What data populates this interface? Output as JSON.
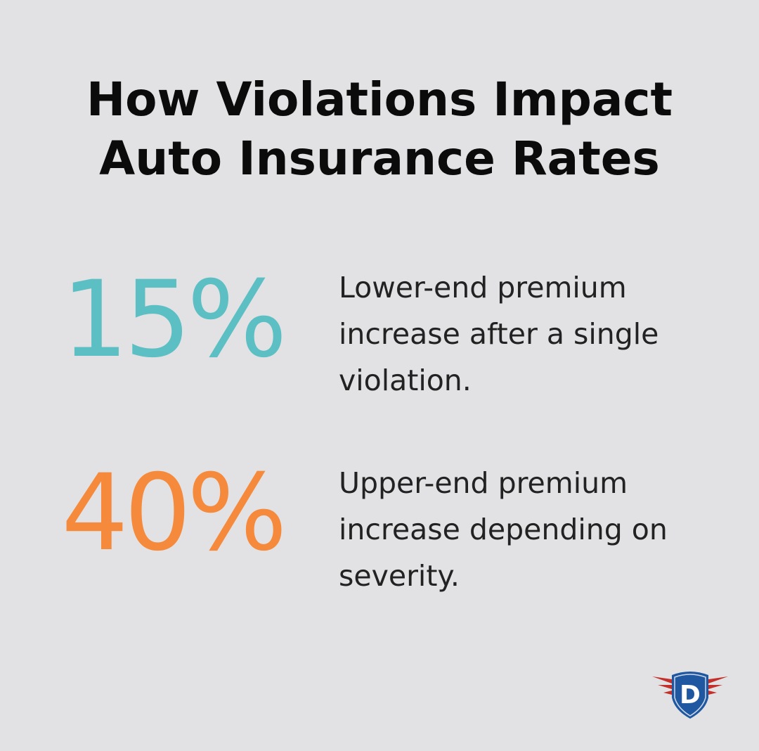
{
  "title": {
    "line1": "How Violations Impact",
    "line2": "Auto Insurance Rates"
  },
  "stats": [
    {
      "value": "15%",
      "color": "#5bbfc3",
      "description": "Lower-end premium increase after a single violation."
    },
    {
      "value": "40%",
      "color": "#f58a3c",
      "description": "Upper-end premium increase depending on severity."
    }
  ],
  "logo": {
    "letter": "D",
    "shield_color": "#1f58a0",
    "wing_color": "#c4302b"
  }
}
